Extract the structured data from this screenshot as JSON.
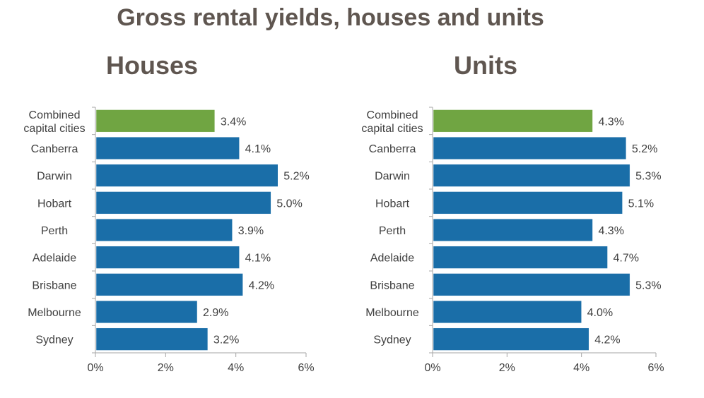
{
  "title": "Gross rental yields, houses and units",
  "colors": {
    "highlight": "#70a542",
    "bar": "#1a6ea8",
    "text": "#404040",
    "title": "#5f5650"
  },
  "chart_data": [
    {
      "type": "bar",
      "orientation": "horizontal",
      "title": "Houses",
      "categories": [
        [
          "Combined",
          "capital cities"
        ],
        [
          "Canberra"
        ],
        [
          "Darwin"
        ],
        [
          "Hobart"
        ],
        [
          "Perth"
        ],
        [
          "Adelaide"
        ],
        [
          "Brisbane"
        ],
        [
          "Melbourne"
        ],
        [
          "Sydney"
        ]
      ],
      "values": [
        3.4,
        4.1,
        5.2,
        5.0,
        3.9,
        4.1,
        4.2,
        2.9,
        3.2
      ],
      "value_labels": [
        "3.4%",
        "4.1%",
        "5.2%",
        "5.0%",
        "3.9%",
        "4.1%",
        "4.2%",
        "2.9%",
        "3.2%"
      ],
      "xlim": [
        0,
        6
      ],
      "xticks": [
        0,
        2,
        4,
        6
      ],
      "xtick_labels": [
        "0%",
        "2%",
        "4%",
        "6%"
      ],
      "highlight_index": 0,
      "grid": false
    },
    {
      "type": "bar",
      "orientation": "horizontal",
      "title": "Units",
      "categories": [
        [
          "Combined",
          "capital cities"
        ],
        [
          "Canberra"
        ],
        [
          "Darwin"
        ],
        [
          "Hobart"
        ],
        [
          "Perth"
        ],
        [
          "Adelaide"
        ],
        [
          "Brisbane"
        ],
        [
          "Melbourne"
        ],
        [
          "Sydney"
        ]
      ],
      "values": [
        4.3,
        5.2,
        5.3,
        5.1,
        4.3,
        4.7,
        5.3,
        4.0,
        4.2
      ],
      "value_labels": [
        "4.3%",
        "5.2%",
        "5.3%",
        "5.1%",
        "4.3%",
        "4.7%",
        "5.3%",
        "4.0%",
        "4.2%"
      ],
      "xlim": [
        0,
        6
      ],
      "xticks": [
        0,
        2,
        4,
        6
      ],
      "xtick_labels": [
        "0%",
        "2%",
        "4%",
        "6%"
      ],
      "highlight_index": 0,
      "grid": false
    }
  ]
}
